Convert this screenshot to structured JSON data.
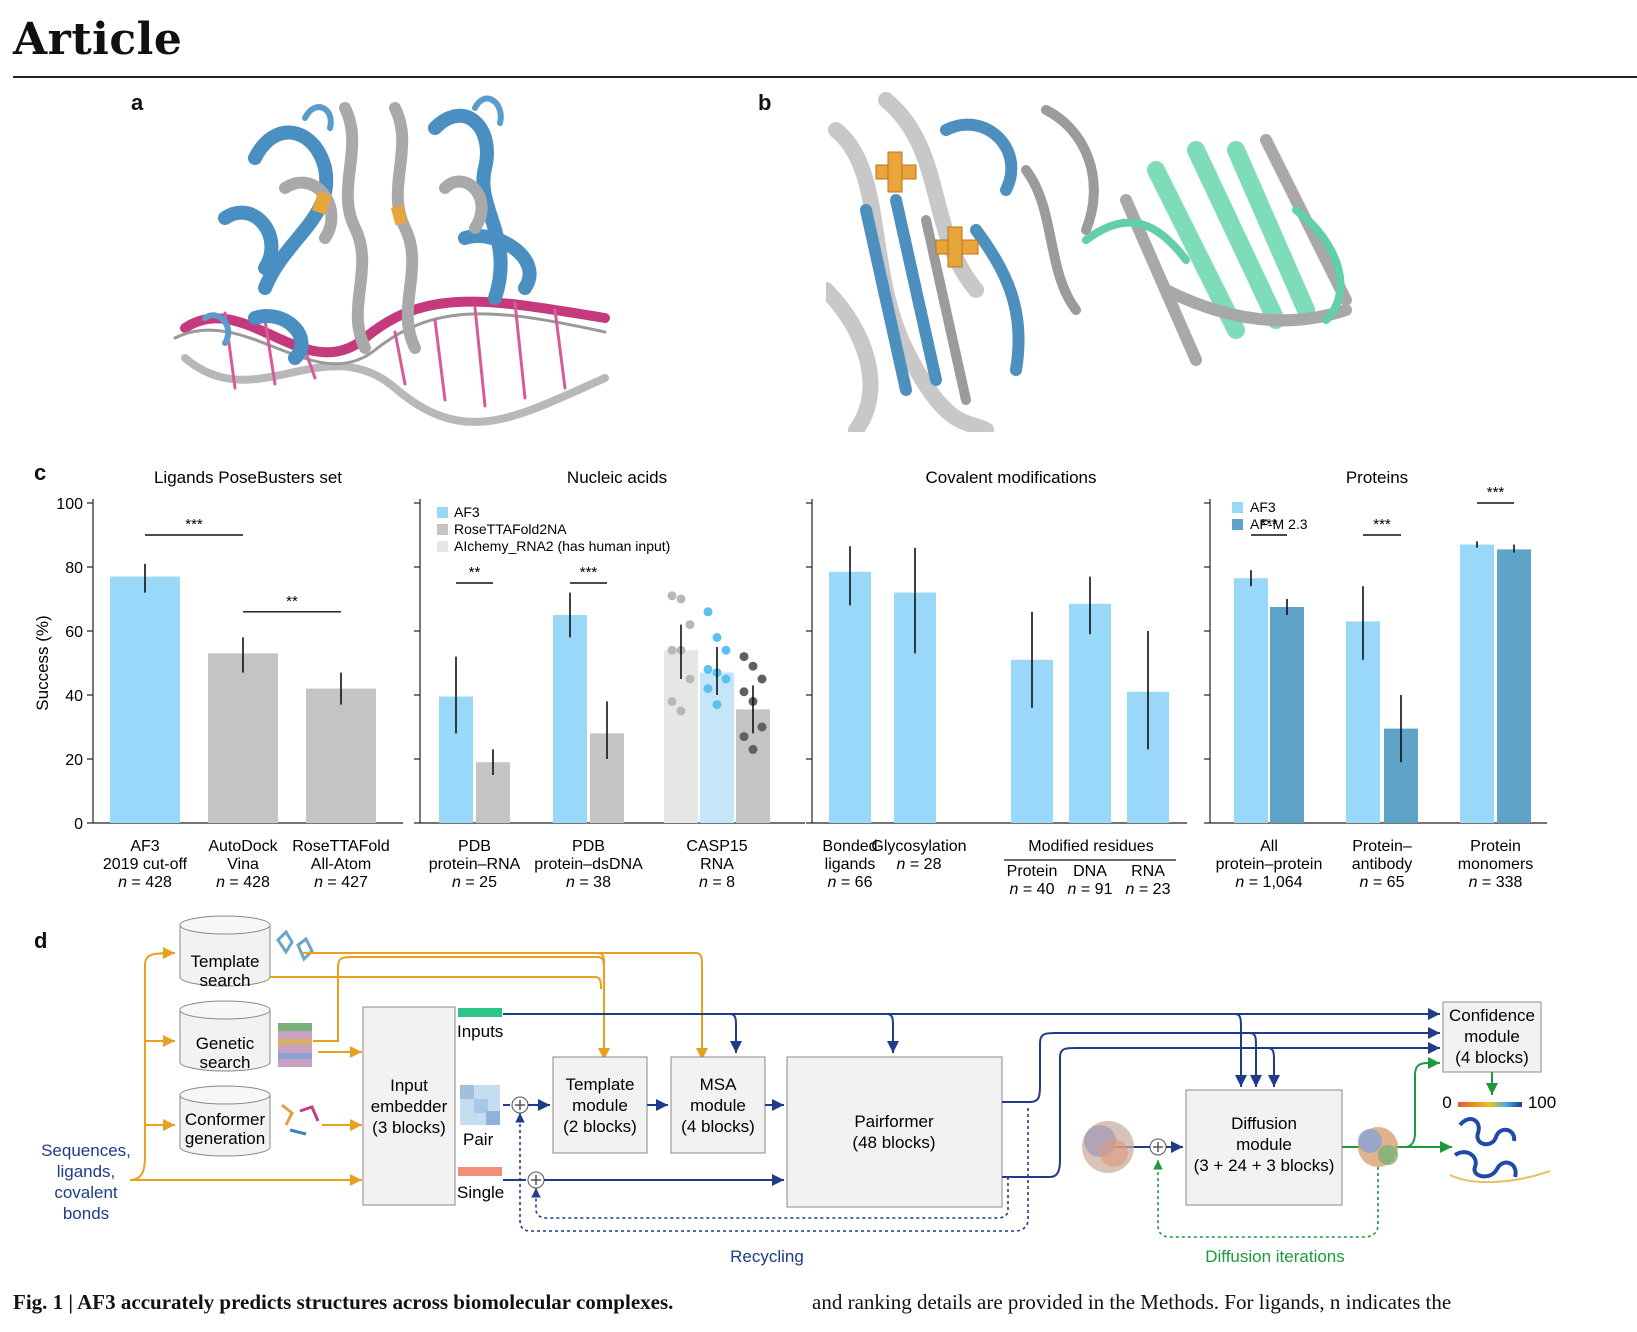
{
  "header": {
    "title": "Article"
  },
  "panels": {
    "a": "a",
    "b": "b",
    "c": "c",
    "d": "d"
  },
  "colors": {
    "af3": "#99d8f8",
    "gray": "#c4c4c4",
    "lightgray": "#e6e6e6",
    "lightblue": "#c5e6f8",
    "afm": "#5fa3c9",
    "orange": "#e8a020",
    "navy": "#1f3b8a",
    "green": "#1d9a3c"
  },
  "chart_data": [
    {
      "type": "bar",
      "title": "Ligands PoseBusters set",
      "ylabel": "Success (%)",
      "ylim": [
        0,
        100
      ],
      "yticks": [
        "0",
        "20",
        "40",
        "60",
        "80",
        "100"
      ],
      "bars": [
        {
          "label": [
            "AF3",
            "2019 cut-off",
            "n = 428"
          ],
          "value": 77,
          "err": [
            72,
            81
          ],
          "color": "af3"
        },
        {
          "label": [
            "AutoDock",
            "Vina",
            "n = 428"
          ],
          "value": 53,
          "err": [
            47,
            58
          ],
          "color": "gray"
        },
        {
          "label": [
            "RoseTTAFold",
            "All-Atom",
            "n = 427"
          ],
          "value": 42,
          "err": [
            37,
            47
          ],
          "color": "gray"
        }
      ],
      "significance": [
        {
          "from": 0,
          "to": 1,
          "text": "***",
          "y": 90
        },
        {
          "from": 1,
          "to": 2,
          "text": "**",
          "y": 66
        }
      ]
    },
    {
      "type": "bar",
      "title": "Nucleic acids",
      "ylim": [
        0,
        100
      ],
      "legend": [
        {
          "name": "AF3",
          "color": "af3"
        },
        {
          "name": "RoseTTAFold2NA",
          "color": "gray"
        },
        {
          "name": "AIchemy_RNA2 (has human input)",
          "color": "lightgray"
        }
      ],
      "groups": [
        {
          "label": [
            "PDB",
            "protein–RNA",
            "n = 25"
          ],
          "bars": [
            {
              "value": 39.5,
              "err": [
                28,
                52
              ],
              "color": "af3"
            },
            {
              "value": 19,
              "err": [
                15,
                23
              ],
              "color": "gray"
            }
          ],
          "sig": "**"
        },
        {
          "label": [
            "PDB",
            "protein–dsDNA",
            "n = 38"
          ],
          "bars": [
            {
              "value": 65,
              "err": [
                58,
                72
              ],
              "color": "af3"
            },
            {
              "value": 28,
              "err": [
                20,
                38
              ],
              "color": "gray"
            }
          ],
          "sig": "***"
        },
        {
          "label": [
            "CASP15",
            "RNA",
            "n = 8"
          ],
          "bars": [
            {
              "value": 54,
              "err": [
                45,
                62
              ],
              "color": "lightgray",
              "points": [
                71,
                70,
                62,
                54,
                54,
                45,
                38,
                35
              ]
            },
            {
              "value": 47,
              "err": [
                40,
                55
              ],
              "color": "lightblue",
              "points": [
                66,
                58,
                54,
                48,
                47,
                45,
                42,
                37
              ]
            },
            {
              "value": 35.5,
              "err": [
                28,
                43
              ],
              "color": "gray",
              "points": [
                52,
                49,
                45,
                41,
                38,
                30,
                27,
                23
              ]
            }
          ]
        }
      ]
    },
    {
      "type": "bar",
      "title": "Covalent modifications",
      "ylim": [
        0,
        100
      ],
      "bars": [
        {
          "label": [
            "Bonded",
            "ligands",
            "n = 66"
          ],
          "value": 78.5,
          "err": [
            68,
            86.5
          ]
        },
        {
          "label": [
            "Glycosylation",
            "n = 28"
          ],
          "value": 72,
          "err": [
            53,
            86
          ]
        },
        {
          "label": [
            "Protein",
            "n = 40"
          ],
          "value": 51,
          "err": [
            36,
            66
          ]
        },
        {
          "label": [
            "DNA",
            "n = 91"
          ],
          "value": 68.5,
          "err": [
            59,
            77
          ]
        },
        {
          "label": [
            "RNA",
            "n = 23"
          ],
          "value": 41,
          "err": [
            23,
            60
          ]
        }
      ],
      "group_label": "Modified residues"
    },
    {
      "type": "bar",
      "title": "Proteins",
      "ylim": [
        0,
        100
      ],
      "legend": [
        {
          "name": "AF3",
          "color": "af3"
        },
        {
          "name": "AF-M 2.3",
          "color": "afm"
        }
      ],
      "groups": [
        {
          "label": [
            "All",
            "protein–protein",
            "n = 1,064"
          ],
          "bars": [
            {
              "value": 76.5,
              "err": [
                74,
                79
              ]
            },
            {
              "value": 67.5,
              "err": [
                65,
                70
              ]
            }
          ],
          "sig": "***"
        },
        {
          "label": [
            "Protein–",
            "antibody",
            "n = 65"
          ],
          "bars": [
            {
              "value": 63,
              "err": [
                51,
                74
              ]
            },
            {
              "value": 29.5,
              "err": [
                19,
                40
              ]
            }
          ],
          "sig": "***"
        },
        {
          "label": [
            "Protein",
            "monomers",
            "n = 338"
          ],
          "bars": [
            {
              "value": 87,
              "err": [
                86,
                88
              ]
            },
            {
              "value": 85.5,
              "err": [
                84.5,
                87
              ]
            }
          ],
          "sig": "***"
        }
      ]
    }
  ],
  "diagram": {
    "template_search": [
      "Template",
      "search"
    ],
    "genetic_search": [
      "Genetic",
      "search"
    ],
    "conformer": [
      "Conformer",
      "generation"
    ],
    "sequences": [
      "Sequences,",
      "ligands,",
      "covalent",
      "bonds"
    ],
    "input_embedder": [
      "Input",
      "embedder",
      "(3 blocks)"
    ],
    "inputs": "Inputs",
    "pair": "Pair",
    "single": "Single",
    "template_module": [
      "Template",
      "module",
      "(2 blocks)"
    ],
    "msa_module": [
      "MSA",
      "module",
      "(4 blocks)"
    ],
    "pairformer": [
      "Pairformer",
      "(48 blocks)"
    ],
    "diffusion_module": [
      "Diffusion",
      "module",
      "(3 + 24 + 3 blocks)"
    ],
    "confidence_module": [
      "Confidence",
      "module",
      "(4 blocks)"
    ],
    "scale_min": "0",
    "scale_max": "100",
    "recycling": "Recycling",
    "diffusion_iterations": "Diffusion iterations"
  },
  "caption": {
    "left_bold": "Fig. 1 | AF3 accurately predicts structures across biomolecular complexes.",
    "right": "and ranking details are provided in the Methods. For ligands, n indicates the"
  }
}
